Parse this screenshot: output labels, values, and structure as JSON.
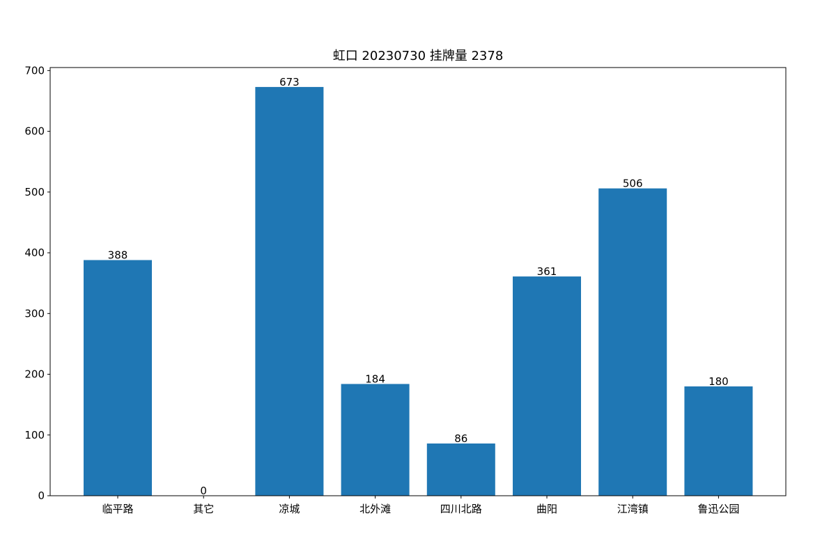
{
  "chart_data": {
    "type": "bar",
    "title": "虹口 20230730 挂牌量 2378",
    "xlabel": "",
    "ylabel": "",
    "categories": [
      "临平路",
      "其它",
      "凉城",
      "北外滩",
      "四川北路",
      "曲阳",
      "江湾镇",
      "鲁迅公园"
    ],
    "values": [
      388,
      0,
      673,
      184,
      86,
      361,
      506,
      180
    ],
    "ylim": [
      0,
      705
    ],
    "yticks": [
      0,
      100,
      200,
      300,
      400,
      500,
      600,
      700
    ],
    "bar_color": "#1f77b4",
    "grid": false,
    "legend": "none"
  }
}
